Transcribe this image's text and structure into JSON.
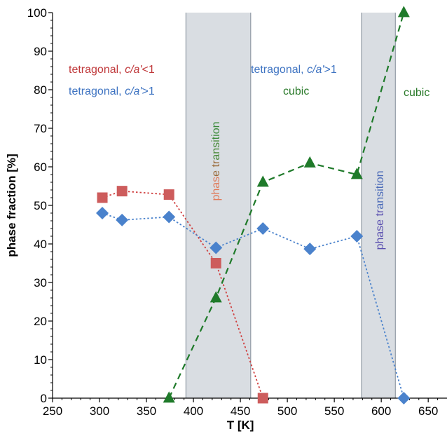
{
  "chart_data": {
    "type": "scatter",
    "xlabel": "T [K]",
    "ylabel": "phase fraction  [%]",
    "xlim": [
      250,
      670
    ],
    "ylim": [
      0,
      100
    ],
    "xticks": [
      250,
      300,
      350,
      400,
      450,
      500,
      550,
      600,
      650
    ],
    "yticks": [
      0,
      10,
      20,
      30,
      40,
      50,
      60,
      70,
      80,
      90,
      100
    ],
    "grid": false,
    "shaded_regions": [
      {
        "x": [
          392,
          461
        ],
        "color": "#d9dde2",
        "label": "phase transition",
        "label_colors": [
          "#e07a5a",
          "#9a6a3a",
          "#4a8a3a",
          "#3a8a3a"
        ]
      },
      {
        "x": [
          579,
          615
        ],
        "color": "#d9dde2",
        "label": "phase transition",
        "label_colors": [
          "#5a4fb0",
          "#4a6ab8"
        ]
      }
    ],
    "series": [
      {
        "marker": "square",
        "color": "#cd5c5c",
        "line_color": "#d04040",
        "line_style": "dotted",
        "x": [
          303,
          324,
          374,
          424,
          474
        ],
        "y": [
          52,
          53.7,
          52.8,
          35,
          0
        ]
      },
      {
        "marker": "diamond",
        "color": "#4a82cc",
        "line_color": "#4a82cc",
        "line_style": "dotted",
        "x": [
          303,
          324,
          374,
          424,
          474,
          524,
          574,
          624
        ],
        "y": [
          48,
          46.2,
          47,
          39,
          44,
          38.7,
          42,
          0
        ]
      },
      {
        "marker": "triangle",
        "color": "#1f7a2a",
        "line_color": "#1f7a2a",
        "line_style": "dashed",
        "x": [
          374,
          424,
          474,
          524,
          574,
          624
        ],
        "y": [
          0,
          26,
          56,
          61,
          58,
          100
        ]
      }
    ],
    "annotations": [
      {
        "parts": [
          {
            "text": "tetragonal, ",
            "italic": false
          },
          {
            "text": "c/a'",
            "italic": true
          },
          {
            "text": "<1",
            "italic": false
          }
        ],
        "color": "#c0393b"
      },
      {
        "parts": [
          {
            "text": "tetragonal, ",
            "italic": false
          },
          {
            "text": "c/a'",
            "italic": true
          },
          {
            "text": ">1",
            "italic": false
          }
        ],
        "color": "#3f74c2"
      },
      {
        "parts": [
          {
            "text": "tetragonal, ",
            "italic": false
          },
          {
            "text": "c/a'",
            "italic": true
          },
          {
            "text": ">1",
            "italic": false
          }
        ],
        "color": "#3f74c2"
      },
      {
        "parts": [
          {
            "text": "cubic",
            "italic": false
          }
        ],
        "color": "#2a7a2a"
      },
      {
        "parts": [
          {
            "text": "cubic",
            "italic": false
          }
        ],
        "color": "#2a7a2a"
      }
    ]
  }
}
